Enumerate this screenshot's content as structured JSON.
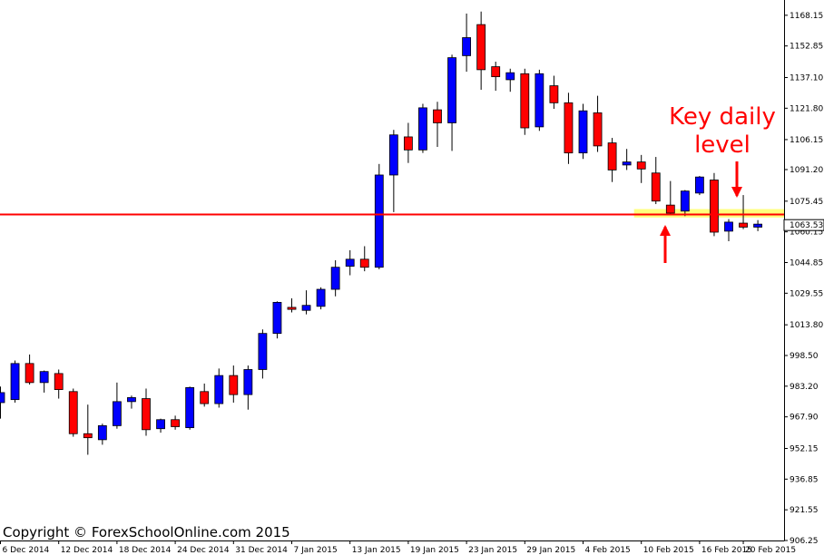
{
  "copyright": "Copyright © ForexSchoolOnline.com 2015",
  "annotation": {
    "line1": "Key daily",
    "line2": "level"
  },
  "current_price_label": "1063.53",
  "colors": {
    "bull": "#0000ff",
    "bear": "#ff0000",
    "level_line": "#ff0000",
    "level_zone": "#ffff66",
    "arrow": "#ff0000",
    "axis": "#000000"
  },
  "chart_data": {
    "type": "candlestick",
    "title": "",
    "xlabel": "",
    "ylabel": "",
    "ylim": [
      906.25,
      1173.5
    ],
    "grid": false,
    "y_ticks": [
      "1168.15",
      "1152.85",
      "1137.10",
      "1121.80",
      "1106.15",
      "1091.20",
      "1075.45",
      "1060.15",
      "1044.85",
      "1029.55",
      "1013.80",
      "998.50",
      "983.20",
      "967.90",
      "952.15",
      "936.85",
      "921.55",
      "906.25"
    ],
    "x_labels": [
      {
        "i": 0,
        "label": "6 Dec 2014"
      },
      {
        "i": 4,
        "label": "12 Dec 2014"
      },
      {
        "i": 8,
        "label": "18 Dec 2014"
      },
      {
        "i": 12,
        "label": "24 Dec 2014"
      },
      {
        "i": 16,
        "label": "31 Dec 2014"
      },
      {
        "i": 20,
        "label": "7 Jan 2015"
      },
      {
        "i": 24,
        "label": "13 Jan 2015"
      },
      {
        "i": 28,
        "label": "19 Jan 2015"
      },
      {
        "i": 32,
        "label": "23 Jan 2015"
      },
      {
        "i": 36,
        "label": "29 Jan 2015"
      },
      {
        "i": 40,
        "label": "4 Feb 2015"
      },
      {
        "i": 44,
        "label": "10 Feb 2015"
      },
      {
        "i": 48,
        "label": "16 Feb 2015"
      },
      {
        "i": 51,
        "label": "20 Feb 2015"
      }
    ],
    "key_level": 1068.8,
    "level_zone": [
      1067.3,
      1071.5
    ],
    "current_price": 1063.53,
    "candles": [
      {
        "o": 975.0,
        "h": 983.0,
        "l": 967.0,
        "c": 980.0
      },
      {
        "o": 976.5,
        "h": 996.0,
        "l": 975.0,
        "c": 994.5
      },
      {
        "o": 994.5,
        "h": 999.0,
        "l": 984.0,
        "c": 985.0
      },
      {
        "o": 985.0,
        "h": 991.0,
        "l": 980.0,
        "c": 990.5
      },
      {
        "o": 989.5,
        "h": 991.5,
        "l": 977.0,
        "c": 981.5
      },
      {
        "o": 980.5,
        "h": 982.0,
        "l": 958.0,
        "c": 959.5
      },
      {
        "o": 959.5,
        "h": 974.0,
        "l": 949.0,
        "c": 957.5
      },
      {
        "o": 956.5,
        "h": 964.5,
        "l": 954.0,
        "c": 963.5
      },
      {
        "o": 963.5,
        "h": 985.0,
        "l": 962.0,
        "c": 975.5
      },
      {
        "o": 975.5,
        "h": 978.5,
        "l": 972.0,
        "c": 977.5
      },
      {
        "o": 977.0,
        "h": 982.0,
        "l": 958.5,
        "c": 961.5
      },
      {
        "o": 962.0,
        "h": 967.0,
        "l": 960.0,
        "c": 966.5
      },
      {
        "o": 966.5,
        "h": 968.5,
        "l": 961.5,
        "c": 963.0
      },
      {
        "o": 962.5,
        "h": 983.0,
        "l": 961.5,
        "c": 982.5
      },
      {
        "o": 980.5,
        "h": 984.5,
        "l": 973.0,
        "c": 974.5
      },
      {
        "o": 974.5,
        "h": 992.0,
        "l": 972.5,
        "c": 988.5
      },
      {
        "o": 988.5,
        "h": 993.5,
        "l": 975.0,
        "c": 979.0
      },
      {
        "o": 979.0,
        "h": 993.5,
        "l": 971.5,
        "c": 991.5
      },
      {
        "o": 991.5,
        "h": 1011.5,
        "l": 987.0,
        "c": 1009.5
      },
      {
        "o": 1009.5,
        "h": 1025.5,
        "l": 1007.0,
        "c": 1025.0
      },
      {
        "o": 1022.5,
        "h": 1027.0,
        "l": 1020.0,
        "c": 1021.5
      },
      {
        "o": 1021.0,
        "h": 1031.0,
        "l": 1019.0,
        "c": 1023.5
      },
      {
        "o": 1023.0,
        "h": 1032.5,
        "l": 1021.5,
        "c": 1031.5
      },
      {
        "o": 1031.5,
        "h": 1046.0,
        "l": 1028.0,
        "c": 1042.5
      },
      {
        "o": 1043.0,
        "h": 1051.0,
        "l": 1038.5,
        "c": 1046.5
      },
      {
        "o": 1046.5,
        "h": 1053.0,
        "l": 1040.5,
        "c": 1042.5
      },
      {
        "o": 1042.5,
        "h": 1094.0,
        "l": 1041.5,
        "c": 1088.5
      },
      {
        "o": 1088.5,
        "h": 1111.0,
        "l": 1070.0,
        "c": 1108.5
      },
      {
        "o": 1107.5,
        "h": 1114.5,
        "l": 1094.5,
        "c": 1101.0
      },
      {
        "o": 1101.0,
        "h": 1124.0,
        "l": 1099.5,
        "c": 1122.0
      },
      {
        "o": 1121.0,
        "h": 1125.0,
        "l": 1102.5,
        "c": 1114.5
      },
      {
        "o": 1114.5,
        "h": 1148.5,
        "l": 1100.5,
        "c": 1147.0
      },
      {
        "o": 1148.0,
        "h": 1169.0,
        "l": 1140.0,
        "c": 1157.0
      },
      {
        "o": 1163.5,
        "h": 1170.0,
        "l": 1131.0,
        "c": 1141.0
      },
      {
        "o": 1142.5,
        "h": 1145.0,
        "l": 1130.5,
        "c": 1137.5
      },
      {
        "o": 1136.0,
        "h": 1141.5,
        "l": 1130.0,
        "c": 1139.5
      },
      {
        "o": 1139.0,
        "h": 1141.5,
        "l": 1108.5,
        "c": 1112.0
      },
      {
        "o": 1112.5,
        "h": 1141.0,
        "l": 1110.5,
        "c": 1139.0
      },
      {
        "o": 1133.0,
        "h": 1138.0,
        "l": 1121.5,
        "c": 1124.5
      },
      {
        "o": 1124.5,
        "h": 1129.5,
        "l": 1094.0,
        "c": 1099.5
      },
      {
        "o": 1099.5,
        "h": 1124.0,
        "l": 1096.5,
        "c": 1120.5
      },
      {
        "o": 1119.5,
        "h": 1128.0,
        "l": 1100.0,
        "c": 1103.0
      },
      {
        "o": 1104.5,
        "h": 1107.0,
        "l": 1085.0,
        "c": 1091.0
      },
      {
        "o": 1093.5,
        "h": 1101.5,
        "l": 1091.0,
        "c": 1095.0
      },
      {
        "o": 1095.0,
        "h": 1098.5,
        "l": 1084.5,
        "c": 1091.5
      },
      {
        "o": 1089.5,
        "h": 1097.5,
        "l": 1074.0,
        "c": 1075.5
      },
      {
        "o": 1073.5,
        "h": 1085.5,
        "l": 1068.5,
        "c": 1069.5
      },
      {
        "o": 1070.5,
        "h": 1081.0,
        "l": 1068.0,
        "c": 1080.5
      },
      {
        "o": 1079.5,
        "h": 1088.0,
        "l": 1078.5,
        "c": 1087.5
      },
      {
        "o": 1086.0,
        "h": 1089.5,
        "l": 1058.0,
        "c": 1060.0
      },
      {
        "o": 1060.5,
        "h": 1066.5,
        "l": 1055.5,
        "c": 1065.0
      },
      {
        "o": 1064.5,
        "h": 1078.5,
        "l": 1061.5,
        "c": 1062.5
      },
      {
        "o": 1062.5,
        "h": 1066.0,
        "l": 1060.5,
        "c": 1064.0
      }
    ]
  }
}
